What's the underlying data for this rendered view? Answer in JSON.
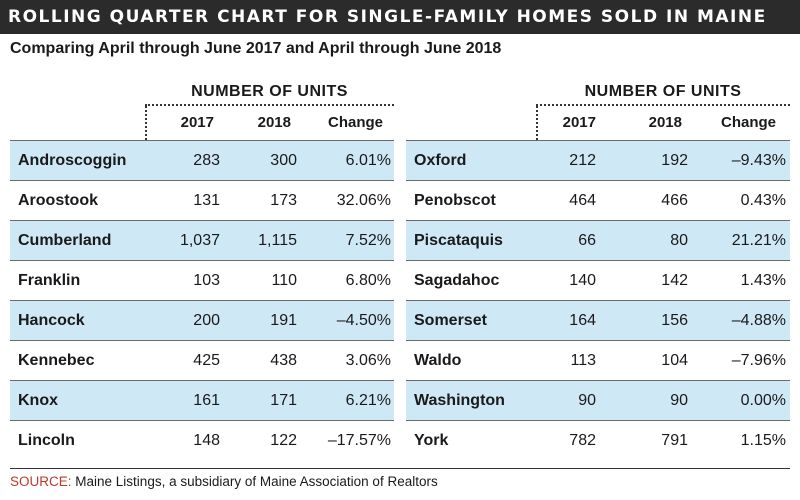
{
  "title": "ROLLING QUARTER CHART FOR SINGLE-FAMILY HOMES SOLD IN MAINE",
  "subtitle": "Comparing April through June 2017 and April through June 2018",
  "group_header": "NUMBER OF UNITS",
  "columns": [
    "2017",
    "2018",
    "Change"
  ],
  "source_label": "SOURCE:",
  "source_text": "Maine Listings, a subsidiary of Maine Association of Realtors",
  "accent_color": "#c0392b",
  "shade_color": "#cfe8f6",
  "chart_data": {
    "type": "table",
    "title": "ROLLING QUARTER CHART FOR SINGLE-FAMILY HOMES SOLD IN MAINE",
    "subtitle": "Comparing April through June 2017 and April through June 2018",
    "columns": [
      "2017",
      "2018",
      "Change"
    ],
    "left": [
      {
        "county": "Androscoggin",
        "y2017": "283",
        "y2018": "300",
        "change": "6.01%"
      },
      {
        "county": "Aroostook",
        "y2017": "131",
        "y2018": "173",
        "change": "32.06%"
      },
      {
        "county": "Cumberland",
        "y2017": "1,037",
        "y2018": "1,115",
        "change": "7.52%"
      },
      {
        "county": "Franklin",
        "y2017": "103",
        "y2018": "110",
        "change": "6.80%"
      },
      {
        "county": "Hancock",
        "y2017": "200",
        "y2018": "191",
        "change": "–4.50%"
      },
      {
        "county": "Kennebec",
        "y2017": "425",
        "y2018": "438",
        "change": "3.06%"
      },
      {
        "county": "Knox",
        "y2017": "161",
        "y2018": "171",
        "change": "6.21%"
      },
      {
        "county": "Lincoln",
        "y2017": "148",
        "y2018": "122",
        "change": "–17.57%"
      }
    ],
    "right": [
      {
        "county": "Oxford",
        "y2017": "212",
        "y2018": "192",
        "change": "–9.43%"
      },
      {
        "county": "Penobscot",
        "y2017": "464",
        "y2018": "466",
        "change": "0.43%"
      },
      {
        "county": "Piscataquis",
        "y2017": "66",
        "y2018": "80",
        "change": "21.21%"
      },
      {
        "county": "Sagadahoc",
        "y2017": "140",
        "y2018": "142",
        "change": "1.43%"
      },
      {
        "county": "Somerset",
        "y2017": "164",
        "y2018": "156",
        "change": "–4.88%"
      },
      {
        "county": "Waldo",
        "y2017": "113",
        "y2018": "104",
        "change": "–7.96%"
      },
      {
        "county": "Washington",
        "y2017": "90",
        "y2018": "90",
        "change": "0.00%"
      },
      {
        "county": "York",
        "y2017": "782",
        "y2018": "791",
        "change": "1.15%"
      }
    ]
  }
}
